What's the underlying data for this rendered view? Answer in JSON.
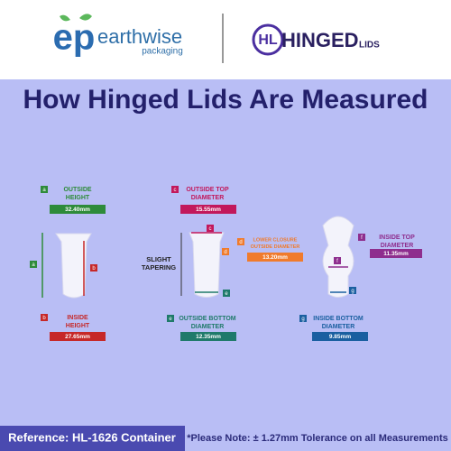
{
  "header": {
    "brand1_mark": "ep",
    "brand1": "earthwise",
    "brand1_sub": "packaging",
    "brand2_mark": "HL",
    "brand2": "HINGED",
    "brand2_sub": "LIDS"
  },
  "title": "How Hinged Lids Are Measured",
  "measurements": [
    {
      "letter": "a",
      "label": [
        "OUTSIDE",
        "HEIGHT"
      ],
      "value": "32.40mm",
      "color": "#2e8b3a"
    },
    {
      "letter": "b",
      "label": [
        "INSIDE",
        "HEIGHT"
      ],
      "value": "27.65mm",
      "color": "#c62828"
    },
    {
      "letter": "c",
      "label": [
        "OUTSIDE TOP",
        "DIAMETER"
      ],
      "value": "15.55mm",
      "color": "#c2185b"
    },
    {
      "letter": "d",
      "label": [
        "LOWER CLOSURE",
        "OUTSIDE DIAMETER"
      ],
      "value": "13.20mm",
      "color": "#f07b2c"
    },
    {
      "letter": "e",
      "label": [
        "OUTSIDE BOTTOM",
        "DIAMETER"
      ],
      "value": "12.35mm",
      "color": "#1f7a6a"
    },
    {
      "letter": "f",
      "label": [
        "INSIDE TOP",
        "DIAMETER"
      ],
      "value": "11.35mm",
      "color": "#8e2e8e"
    },
    {
      "letter": "g",
      "label": [
        "INSIDE BOTTOM",
        "DIAMETER"
      ],
      "value": "9.85mm",
      "color": "#1a5fa0"
    }
  ],
  "tapering": [
    "SLIGHT",
    "TAPERING"
  ],
  "footer": {
    "reference": "Reference: HL-1626 Container",
    "note": "*Please Note: ± 1.27mm Tolerance on all Measurements"
  }
}
